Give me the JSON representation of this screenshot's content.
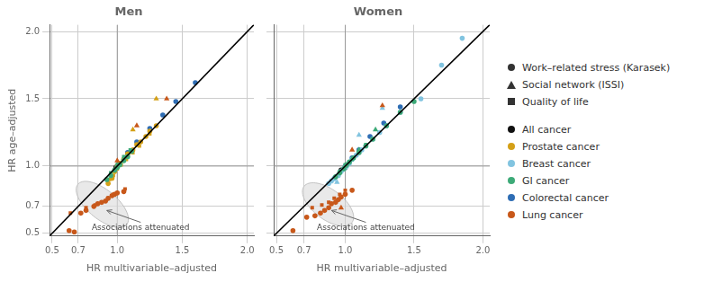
{
  "chart_data": [
    {
      "type": "scatter",
      "title": "Men",
      "xlabel": "HR multivariable–adjusted",
      "ylabel": "HR age–adjusted",
      "xlim": [
        0.48,
        2.05
      ],
      "ylim": [
        0.48,
        2.05
      ],
      "xticks": [
        0.5,
        0.7,
        {
          "value": 1.0,
          "label": "1.0"
        },
        1.5,
        {
          "value": 2.0,
          "label": "2.0"
        }
      ],
      "yticks": [
        0.5,
        0.7,
        {
          "value": 1.0,
          "label": "1.0"
        },
        1.5,
        {
          "value": 2.0,
          "label": "2.0"
        }
      ],
      "grid": true,
      "reference_line": 1.0,
      "diagonal": [
        0.48,
        2.05
      ],
      "ellipse": {
        "cx": 0.885,
        "cy": 0.715,
        "width": 0.48,
        "height": 0.22,
        "angle": -38
      },
      "annotation": {
        "text": "Associations attenuated",
        "x": 0.92,
        "y": 0.67,
        "text_x": 1.18,
        "text_y": 0.575
      },
      "series": [
        {
          "name": "Lung cancer",
          "color": "#C8581A",
          "marker": "circle",
          "x": [
            0.63,
            0.67,
            0.72,
            0.76,
            0.82,
            0.85,
            0.88,
            0.91,
            0.93,
            0.96,
            0.98,
            1.0,
            1.05
          ],
          "y": [
            0.52,
            0.51,
            0.65,
            0.67,
            0.7,
            0.72,
            0.73,
            0.74,
            0.76,
            0.78,
            0.79,
            0.8,
            0.81
          ]
        },
        {
          "name": "Lung cancer",
          "color": "#C8581A",
          "marker": "triangle",
          "x": [
            1.0,
            1.15,
            1.38
          ],
          "y": [
            1.04,
            1.3,
            1.5
          ]
        },
        {
          "name": "Lung cancer",
          "color": "#C8581A",
          "marker": "square",
          "x": [
            0.64,
            0.76,
            0.83,
            0.88,
            0.93,
            0.97,
            1.06
          ],
          "y": [
            0.65,
            0.69,
            0.71,
            0.73,
            0.76,
            0.79,
            0.83
          ]
        },
        {
          "name": "GI cancer",
          "color": "#3DAA78",
          "marker": "circle",
          "x": [
            0.92,
            0.95,
            0.98,
            1.0,
            1.02,
            1.05,
            1.08,
            1.11
          ],
          "y": [
            0.9,
            0.93,
            0.97,
            0.99,
            1.01,
            1.04,
            1.07,
            1.11
          ]
        },
        {
          "name": "GI cancer",
          "color": "#3DAA78",
          "marker": "square",
          "x": [
            0.95,
            1.0,
            1.05,
            1.1
          ],
          "y": [
            0.95,
            1.01,
            1.07,
            1.12
          ]
        },
        {
          "name": "Prostate cancer",
          "color": "#D4A017",
          "marker": "circle",
          "x": [
            0.93,
            0.96,
            0.98,
            1.0,
            1.02,
            1.05,
            1.08,
            1.12,
            1.15,
            1.18,
            1.22,
            1.25,
            1.3
          ],
          "y": [
            0.87,
            0.91,
            0.96,
            1.0,
            1.02,
            1.05,
            1.09,
            1.12,
            1.16,
            1.18,
            1.22,
            1.26,
            1.3
          ]
        },
        {
          "name": "Prostate cancer",
          "color": "#D4A017",
          "marker": "triangle",
          "x": [
            1.0,
            1.05,
            1.12,
            1.3
          ],
          "y": [
            1.0,
            1.06,
            1.27,
            1.5
          ]
        },
        {
          "name": "Prostate cancer",
          "color": "#D4A017",
          "marker": "square",
          "x": [
            0.94,
            0.97,
            1.0,
            1.03,
            1.07,
            1.12,
            1.17,
            1.25
          ],
          "y": [
            0.9,
            0.93,
            0.98,
            1.01,
            1.05,
            1.1,
            1.15,
            1.24
          ]
        },
        {
          "name": "Colorectal cancer",
          "color": "#2E6DB4",
          "marker": "circle",
          "x": [
            1.0,
            1.08,
            1.15,
            1.25,
            1.35,
            1.45,
            1.6
          ],
          "y": [
            1.0,
            1.1,
            1.18,
            1.28,
            1.38,
            1.48,
            1.62
          ]
        },
        {
          "name": "All cancer",
          "color": "#111111",
          "marker": "circle",
          "x": [
            0.99,
            1.01
          ],
          "y": [
            0.99,
            1.01
          ]
        },
        {
          "name": "All cancer",
          "color": "#111111",
          "marker": "square",
          "x": [
            1.0
          ],
          "y": [
            1.0
          ]
        }
      ]
    },
    {
      "type": "scatter",
      "title": "Women",
      "xlabel": "HR multivariable–adjusted",
      "tick_labels": "x",
      "xlim": [
        0.48,
        2.05
      ],
      "ylim": [
        0.48,
        2.05
      ],
      "xticks": [
        0.5,
        0.7,
        {
          "value": 1.0,
          "label": "1.0"
        },
        1.5,
        {
          "value": 2.0,
          "label": "2.0"
        }
      ],
      "yticks": [
        0.5,
        0.7,
        {
          "value": 1.0,
          "label": "1.0"
        },
        1.5,
        {
          "value": 2.0,
          "label": "2.0"
        }
      ],
      "grid": true,
      "reference_line": 1.0,
      "diagonal": [
        0.48,
        2.05
      ],
      "ellipse": {
        "cx": 0.875,
        "cy": 0.715,
        "width": 0.44,
        "height": 0.22,
        "angle": -38
      },
      "annotation": {
        "text": "Associations attenuated",
        "x": 0.9,
        "y": 0.67,
        "text_x": 1.15,
        "text_y": 0.575
      },
      "series": [
        {
          "name": "Lung cancer",
          "color": "#C8581A",
          "marker": "circle",
          "x": [
            0.62,
            0.72,
            0.78,
            0.82,
            0.85,
            0.88,
            0.9,
            0.93,
            0.95,
            0.97,
            1.0,
            1.05
          ],
          "y": [
            0.52,
            0.62,
            0.63,
            0.65,
            0.67,
            0.69,
            0.72,
            0.73,
            0.75,
            0.77,
            0.79,
            0.82
          ]
        },
        {
          "name": "Lung cancer",
          "color": "#C8581A",
          "marker": "triangle",
          "x": [
            0.97,
            1.05,
            1.27
          ],
          "y": [
            0.69,
            1.12,
            1.45
          ]
        },
        {
          "name": "Lung cancer",
          "color": "#C8581A",
          "marker": "square",
          "x": [
            0.76,
            0.83,
            0.88,
            0.92,
            0.96,
            1.0
          ],
          "y": [
            0.69,
            0.71,
            0.73,
            0.76,
            0.79,
            0.82
          ]
        },
        {
          "name": "GI cancer",
          "color": "#3DAA78",
          "marker": "circle",
          "x": [
            0.93,
            0.96,
            0.99,
            1.01,
            1.03,
            1.06,
            1.1,
            1.15,
            1.2,
            1.3,
            1.4,
            1.5
          ],
          "y": [
            0.92,
            0.95,
            0.98,
            1.01,
            1.03,
            1.06,
            1.1,
            1.15,
            1.2,
            1.3,
            1.4,
            1.48
          ]
        },
        {
          "name": "GI cancer",
          "color": "#3DAA78",
          "marker": "triangle",
          "x": [
            1.0,
            1.1,
            1.22
          ],
          "y": [
            1.0,
            1.12,
            1.27
          ]
        },
        {
          "name": "GI cancer",
          "color": "#3DAA78",
          "marker": "square",
          "x": [
            0.96,
            1.0,
            1.05,
            1.1,
            1.15
          ],
          "y": [
            0.96,
            1.01,
            1.05,
            1.11,
            1.16
          ]
        },
        {
          "name": "Breast cancer",
          "color": "#82C4E0",
          "marker": "circle",
          "x": [
            0.88,
            0.9,
            0.92,
            0.95,
            0.97,
            0.99,
            1.0,
            1.01,
            1.03,
            1.05,
            1.08,
            1.1,
            1.12,
            1.15,
            1.2,
            1.25,
            1.3,
            1.4,
            1.55,
            1.7,
            1.85
          ],
          "y": [
            0.87,
            0.89,
            0.91,
            0.93,
            0.96,
            0.98,
            0.99,
            1.0,
            1.02,
            1.05,
            1.08,
            1.1,
            1.12,
            1.15,
            1.2,
            1.25,
            1.3,
            1.4,
            1.5,
            1.75,
            1.95
          ]
        },
        {
          "name": "Breast cancer",
          "color": "#82C4E0",
          "marker": "triangle",
          "x": [
            0.94,
            1.0,
            1.1,
            1.27
          ],
          "y": [
            0.88,
            1.0,
            1.23,
            1.43
          ]
        },
        {
          "name": "Breast cancer",
          "color": "#82C4E0",
          "marker": "square",
          "x": [
            0.88,
            0.92,
            0.95,
            0.98,
            1.0,
            1.03,
            1.06,
            1.1,
            1.15,
            1.2
          ],
          "y": [
            0.87,
            0.9,
            0.93,
            0.97,
            1.0,
            1.03,
            1.06,
            1.1,
            1.15,
            1.2
          ]
        },
        {
          "name": "Colorectal cancer",
          "color": "#2E6DB4",
          "marker": "circle",
          "x": [
            1.0,
            1.05,
            1.1,
            1.18,
            1.28,
            1.4
          ],
          "y": [
            1.0,
            1.06,
            1.12,
            1.22,
            1.32,
            1.44
          ]
        },
        {
          "name": "All cancer",
          "color": "#111111",
          "marker": "circle",
          "x": [
            0.97,
            1.0
          ],
          "y": [
            0.97,
            0.99
          ]
        },
        {
          "name": "All cancer",
          "color": "#111111",
          "marker": "square",
          "x": [
            1.0
          ],
          "y": [
            1.0
          ]
        }
      ]
    }
  ],
  "legend": "right",
  "legend_entries": {
    "markers": [
      {
        "marker": "circle",
        "label": "Work–related stress (Karasek)"
      },
      {
        "marker": "triangle",
        "label": "Social network (ISSI)"
      },
      {
        "marker": "square",
        "label": "Quality of life"
      }
    ],
    "colors": [
      {
        "label": "All cancer",
        "color": "#111111"
      },
      {
        "label": "Prostate cancer",
        "color": "#D4A017"
      },
      {
        "label": "Breast cancer",
        "color": "#82C4E0"
      },
      {
        "label": "GI cancer",
        "color": "#3DAA78"
      },
      {
        "label": "Colorectal cancer",
        "color": "#2E6DB4"
      },
      {
        "label": "Lung cancer",
        "color": "#C8581A"
      }
    ]
  }
}
